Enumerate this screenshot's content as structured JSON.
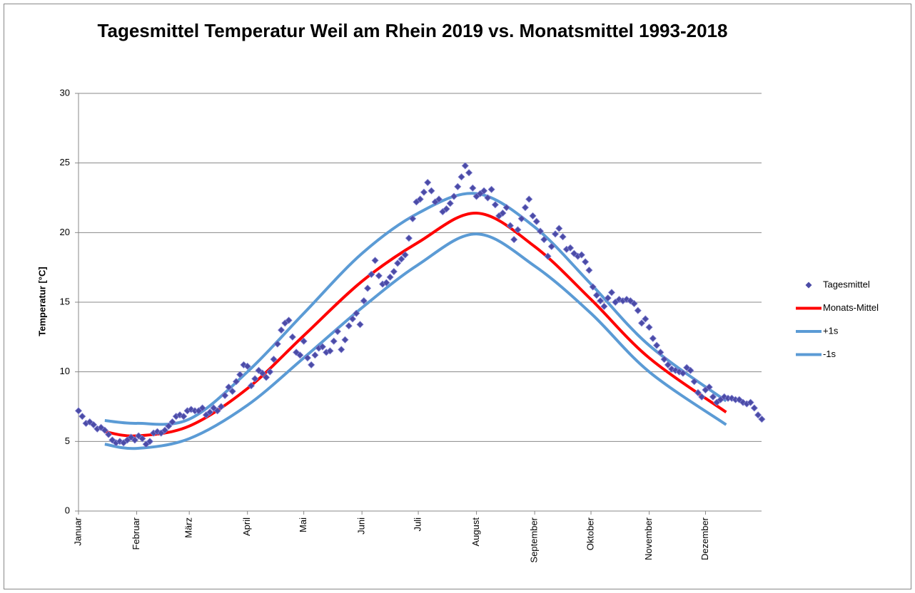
{
  "chart_data": {
    "type": "scatter",
    "title": "Tagesmittel Temperatur Weil am Rhein 2019 vs. Monatsmittel 1993-2018",
    "y_label": "Temperatur [°C]",
    "xlim": [
      1,
      366
    ],
    "ylim": [
      0,
      30
    ],
    "yticks": [
      0,
      5,
      10,
      15,
      20,
      25,
      30
    ],
    "xticks": [
      {
        "value": 1,
        "label": "Januar"
      },
      {
        "value": 32,
        "label": "Februar"
      },
      {
        "value": 60,
        "label": "März"
      },
      {
        "value": 91,
        "label": "April"
      },
      {
        "value": 121,
        "label": "Mai"
      },
      {
        "value": 152,
        "label": "Juni"
      },
      {
        "value": 182,
        "label": "Juli"
      },
      {
        "value": 213,
        "label": "August"
      },
      {
        "value": 244,
        "label": "September"
      },
      {
        "value": 274,
        "label": "Oktober"
      },
      {
        "value": 305,
        "label": "November"
      },
      {
        "value": 335,
        "label": "Dezember"
      }
    ],
    "grid": true,
    "legend": "right",
    "series": [
      {
        "name": "Tagesmittel",
        "type": "scatter",
        "color": "#4b4ba6",
        "x": [
          1,
          3,
          5,
          7,
          9,
          11,
          13,
          15,
          17,
          19,
          21,
          23,
          25,
          27,
          29,
          31,
          33,
          35,
          37,
          39,
          41,
          43,
          45,
          47,
          49,
          51,
          53,
          55,
          57,
          59,
          61,
          63,
          65,
          67,
          69,
          71,
          73,
          75,
          77,
          79,
          81,
          83,
          85,
          87,
          89,
          91,
          93,
          95,
          97,
          99,
          101,
          103,
          105,
          107,
          109,
          111,
          113,
          115,
          117,
          119,
          121,
          123,
          125,
          127,
          129,
          131,
          133,
          135,
          137,
          139,
          141,
          143,
          145,
          147,
          149,
          151,
          153,
          155,
          157,
          159,
          161,
          163,
          165,
          167,
          169,
          171,
          173,
          175,
          177,
          179,
          181,
          183,
          185,
          187,
          189,
          191,
          193,
          195,
          197,
          199,
          201,
          203,
          205,
          207,
          209,
          211,
          213,
          215,
          217,
          219,
          221,
          223,
          225,
          227,
          229,
          231,
          233,
          235,
          237,
          239,
          241,
          243,
          245,
          247,
          249,
          251,
          253,
          255,
          257,
          259,
          261,
          263,
          265,
          267,
          269,
          271,
          273,
          275,
          277,
          279,
          281,
          283,
          285,
          287,
          289,
          291,
          293,
          295,
          297,
          299,
          301,
          303,
          305,
          307,
          309,
          311,
          313,
          315,
          317,
          319,
          321,
          323,
          325,
          327,
          329,
          331,
          333,
          335,
          337,
          339,
          341,
          343,
          345,
          347,
          349,
          351,
          353,
          355,
          357,
          359,
          361,
          363,
          365
        ],
        "values": [
          7.2,
          6.8,
          6.3,
          6.4,
          6.2,
          5.9,
          6.0,
          5.8,
          5.5,
          5.1,
          4.9,
          5.0,
          4.9,
          5.1,
          5.3,
          5.1,
          5.4,
          5.2,
          4.8,
          5.0,
          5.6,
          5.7,
          5.6,
          5.8,
          6.1,
          6.4,
          6.8,
          6.9,
          6.8,
          7.2,
          7.3,
          7.2,
          7.2,
          7.4,
          6.9,
          7.1,
          7.4,
          7.2,
          7.5,
          8.3,
          8.9,
          8.6,
          9.3,
          9.8,
          10.5,
          10.4,
          9.0,
          9.5,
          10.1,
          9.9,
          9.6,
          10.0,
          10.9,
          12.0,
          13.0,
          13.5,
          13.7,
          12.5,
          11.4,
          11.2,
          12.2,
          11.0,
          10.5,
          11.2,
          11.7,
          11.8,
          11.4,
          11.5,
          12.2,
          12.9,
          11.6,
          12.3,
          13.3,
          13.8,
          14.2,
          13.4,
          15.1,
          16.0,
          17.0,
          18.0,
          16.9,
          16.3,
          16.4,
          16.8,
          17.2,
          17.8,
          18.1,
          18.4,
          19.6,
          21.0,
          22.2,
          22.4,
          22.9,
          23.6,
          23.0,
          22.2,
          22.4,
          21.5,
          21.7,
          22.1,
          22.6,
          23.3,
          24.0,
          24.8,
          24.3,
          23.2,
          22.6,
          22.8,
          23.0,
          22.5,
          23.1,
          22.0,
          21.2,
          21.4,
          21.8,
          20.5,
          19.5,
          20.2,
          21.0,
          21.8,
          22.4,
          21.2,
          20.8,
          20.1,
          19.5,
          18.3,
          19.0,
          19.9,
          20.3,
          19.7,
          18.8,
          18.9,
          18.5,
          18.3,
          18.4,
          17.9,
          17.3,
          16.1,
          15.5,
          15.1,
          14.7,
          15.3,
          15.7,
          15.0,
          15.2,
          15.1,
          15.2,
          15.1,
          14.9,
          14.4,
          13.5,
          13.8,
          13.2,
          12.4,
          11.9,
          11.4,
          10.9,
          10.5,
          10.2,
          10.1,
          10.0,
          9.9,
          10.3,
          10.1,
          9.3,
          8.5,
          8.2,
          8.7,
          8.9,
          8.2,
          7.8,
          8.0,
          8.2,
          8.1,
          8.1,
          8.0,
          8.0,
          7.8,
          7.7,
          7.8,
          7.4,
          6.9,
          6.6
        ]
      },
      {
        "name": "Monats-Mittel",
        "type": "line",
        "color": "#ff0000",
        "x": [
          15,
          32,
          60,
          91,
          121,
          152,
          182,
          213,
          244,
          274,
          305,
          346
        ],
        "values": [
          5.7,
          5.4,
          6.1,
          8.8,
          12.6,
          16.5,
          19.3,
          21.4,
          19.0,
          15.2,
          11.0,
          7.1
        ]
      },
      {
        "name": "+1s",
        "type": "line",
        "color": "#5b9bd5",
        "x": [
          15,
          32,
          60,
          91,
          121,
          152,
          182,
          213,
          244,
          274,
          305,
          346
        ],
        "values": [
          6.5,
          6.3,
          6.6,
          10.0,
          14.2,
          18.5,
          21.4,
          22.8,
          20.4,
          16.3,
          11.9,
          7.9
        ]
      },
      {
        "name": "-1s",
        "type": "line",
        "color": "#5b9bd5",
        "x": [
          15,
          32,
          60,
          91,
          121,
          152,
          182,
          213,
          244,
          274,
          305,
          346
        ],
        "values": [
          4.8,
          4.5,
          5.2,
          7.6,
          11.0,
          14.6,
          17.7,
          19.9,
          17.6,
          14.2,
          10.0,
          6.2
        ]
      }
    ]
  }
}
